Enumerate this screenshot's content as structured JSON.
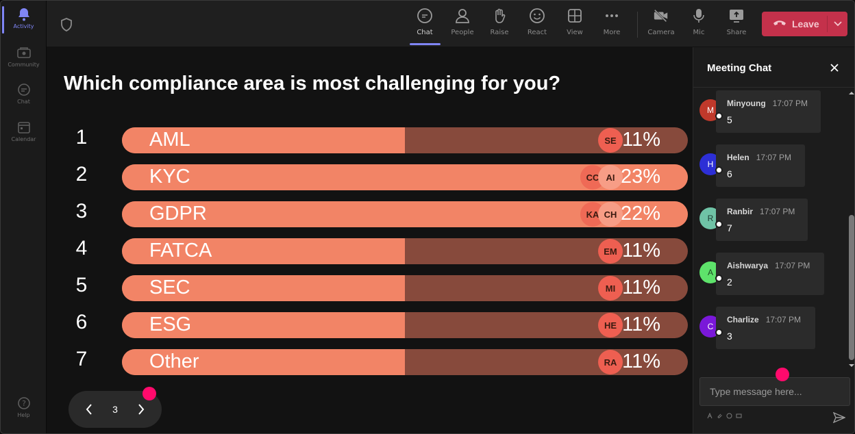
{
  "rail": {
    "items": [
      {
        "label": "Activity",
        "icon": "bell-icon"
      },
      {
        "label": "Community",
        "icon": "community-icon"
      },
      {
        "label": "Chat",
        "icon": "chat-icon"
      },
      {
        "label": "Calendar",
        "icon": "calendar-icon"
      }
    ],
    "help_label": "Help"
  },
  "toolbar": {
    "buttons": [
      {
        "label": "Chat",
        "icon": "chat-icon"
      },
      {
        "label": "People",
        "icon": "people-icon"
      },
      {
        "label": "Raise",
        "icon": "hand-icon"
      },
      {
        "label": "React",
        "icon": "smiley-icon"
      },
      {
        "label": "View",
        "icon": "grid-icon"
      },
      {
        "label": "More",
        "icon": "more-icon"
      },
      {
        "label": "Camera",
        "icon": "camera-off-icon"
      },
      {
        "label": "Mic",
        "icon": "mic-icon"
      },
      {
        "label": "Share",
        "icon": "share-icon"
      }
    ],
    "leave_label": "Leave",
    "leave_color": "#c4314b",
    "accent_color": "#7f85f5"
  },
  "poll": {
    "question": "Which compliance area is most challenging for you?",
    "bar_color": "#f28466",
    "track_color": "#874a3c",
    "options": [
      {
        "num": "1",
        "label": "AML",
        "pct": "11%",
        "fill": 0.5,
        "voters": [
          "SE"
        ]
      },
      {
        "num": "2",
        "label": "KYC",
        "pct": "23%",
        "fill": 1.0,
        "voters": [
          "CC",
          "AI"
        ]
      },
      {
        "num": "3",
        "label": "GDPR",
        "pct": "22%",
        "fill": 1.0,
        "voters": [
          "KA",
          "CH"
        ]
      },
      {
        "num": "4",
        "label": "FATCA",
        "pct": "11%",
        "fill": 0.5,
        "voters": [
          "EM"
        ]
      },
      {
        "num": "5",
        "label": "SEC",
        "pct": "11%",
        "fill": 0.5,
        "voters": [
          "MI"
        ]
      },
      {
        "num": "6",
        "label": "ESG",
        "pct": "11%",
        "fill": 0.5,
        "voters": [
          "HE"
        ]
      },
      {
        "num": "7",
        "label": "Other",
        "pct": "11%",
        "fill": 0.5,
        "voters": [
          "RA"
        ]
      }
    ],
    "page": "3"
  },
  "chat": {
    "title": "Meeting Chat",
    "messages": [
      {
        "initial": "M",
        "name": "Minyoung",
        "time": "17:07 PM",
        "text": "5",
        "color": "#c0392b",
        "initial_color": "#fff"
      },
      {
        "initial": "H",
        "name": "Helen",
        "time": "17:07 PM",
        "text": "6",
        "color": "#2d2fd6",
        "initial_color": "#fff"
      },
      {
        "initial": "R",
        "name": "Ranbir",
        "time": "17:07 PM",
        "text": "7",
        "color": "#6fc3a6",
        "initial_color": "#1c3b31"
      },
      {
        "initial": "A",
        "name": "Aishwarya",
        "time": "17:07 PM",
        "text": "2",
        "color": "#5ee36b",
        "initial_color": "#1c4a22"
      },
      {
        "initial": "C",
        "name": "Charlize",
        "time": "17:07 PM",
        "text": "3",
        "color": "#7a18d9",
        "initial_color": "#fff"
      }
    ],
    "input_placeholder": "Type message here..."
  }
}
